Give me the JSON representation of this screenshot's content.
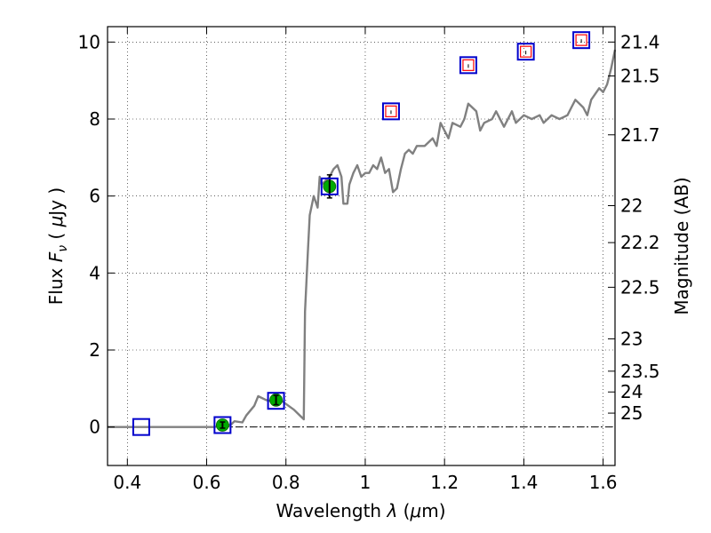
{
  "chart_data": {
    "type": "scatter",
    "xlabel": "Wavelength  λ (μm)",
    "ylabel": "Flux  Fν  ( μJy )",
    "ylabel_right": "Magnitude (AB)",
    "xlim": [
      0.35,
      1.63
    ],
    "ylim": [
      -1,
      10.4
    ],
    "x_ticks": [
      0.4,
      0.6,
      0.8,
      1.0,
      1.2,
      1.4,
      1.6
    ],
    "x_tick_labels": [
      "0.4",
      "0.6",
      "0.8",
      "1",
      "1.2",
      "1.4",
      "1.6"
    ],
    "y_ticks": [
      0,
      2,
      4,
      6,
      8,
      10
    ],
    "y_tick_labels": [
      "0",
      "2",
      "4",
      "6",
      "8",
      "10"
    ],
    "right_ticks": [
      {
        "label": "21.4",
        "flux": 10.0
      },
      {
        "label": "21.5",
        "flux": 9.12
      },
      {
        "label": "21.7",
        "flux": 7.59
      },
      {
        "label": "22",
        "flux": 5.75
      },
      {
        "label": "22.2",
        "flux": 4.79
      },
      {
        "label": "22.5",
        "flux": 3.63
      },
      {
        "label": "23",
        "flux": 2.29
      },
      {
        "label": "23.5",
        "flux": 1.45
      },
      {
        "label": "24",
        "flux": 0.91
      },
      {
        "label": "25",
        "flux": 0.36
      }
    ],
    "grid": true,
    "series": [
      {
        "kind": "model_sed_line",
        "color": "#808080",
        "points": [
          [
            0.35,
            0.0
          ],
          [
            0.55,
            0.0
          ],
          [
            0.62,
            0.0
          ],
          [
            0.64,
            0.05
          ],
          [
            0.66,
            0.05
          ],
          [
            0.67,
            0.15
          ],
          [
            0.69,
            0.12
          ],
          [
            0.7,
            0.3
          ],
          [
            0.72,
            0.55
          ],
          [
            0.73,
            0.8
          ],
          [
            0.75,
            0.7
          ],
          [
            0.77,
            0.65
          ],
          [
            0.78,
            0.75
          ],
          [
            0.8,
            0.6
          ],
          [
            0.82,
            0.45
          ],
          [
            0.83,
            0.35
          ],
          [
            0.845,
            0.2
          ],
          [
            0.848,
            3.0
          ],
          [
            0.855,
            4.5
          ],
          [
            0.86,
            5.5
          ],
          [
            0.87,
            6.0
          ],
          [
            0.88,
            5.7
          ],
          [
            0.885,
            6.5
          ],
          [
            0.89,
            6.3
          ],
          [
            0.9,
            6.4
          ],
          [
            0.91,
            6.5
          ],
          [
            0.92,
            6.7
          ],
          [
            0.93,
            6.8
          ],
          [
            0.94,
            6.5
          ],
          [
            0.945,
            5.8
          ],
          [
            0.955,
            5.8
          ],
          [
            0.96,
            6.3
          ],
          [
            0.97,
            6.6
          ],
          [
            0.98,
            6.8
          ],
          [
            0.99,
            6.5
          ],
          [
            1.0,
            6.6
          ],
          [
            1.01,
            6.6
          ],
          [
            1.02,
            6.8
          ],
          [
            1.03,
            6.7
          ],
          [
            1.04,
            7.0
          ],
          [
            1.05,
            6.6
          ],
          [
            1.06,
            6.7
          ],
          [
            1.07,
            6.1
          ],
          [
            1.08,
            6.2
          ],
          [
            1.09,
            6.7
          ],
          [
            1.1,
            7.1
          ],
          [
            1.11,
            7.2
          ],
          [
            1.12,
            7.1
          ],
          [
            1.13,
            7.3
          ],
          [
            1.15,
            7.3
          ],
          [
            1.17,
            7.5
          ],
          [
            1.18,
            7.3
          ],
          [
            1.19,
            7.9
          ],
          [
            1.21,
            7.5
          ],
          [
            1.22,
            7.9
          ],
          [
            1.24,
            7.8
          ],
          [
            1.25,
            8.0
          ],
          [
            1.26,
            8.4
          ],
          [
            1.28,
            8.2
          ],
          [
            1.29,
            7.7
          ],
          [
            1.3,
            7.9
          ],
          [
            1.32,
            8.0
          ],
          [
            1.33,
            8.2
          ],
          [
            1.35,
            7.8
          ],
          [
            1.37,
            8.2
          ],
          [
            1.38,
            7.9
          ],
          [
            1.4,
            8.1
          ],
          [
            1.42,
            8.0
          ],
          [
            1.44,
            8.1
          ],
          [
            1.45,
            7.9
          ],
          [
            1.47,
            8.1
          ],
          [
            1.49,
            8.0
          ],
          [
            1.51,
            8.1
          ],
          [
            1.52,
            8.3
          ],
          [
            1.53,
            8.5
          ],
          [
            1.55,
            8.3
          ],
          [
            1.56,
            8.1
          ],
          [
            1.57,
            8.5
          ],
          [
            1.59,
            8.8
          ],
          [
            1.6,
            8.7
          ],
          [
            1.61,
            8.9
          ],
          [
            1.62,
            9.3
          ],
          [
            1.63,
            9.8
          ]
        ]
      },
      {
        "kind": "observed",
        "color": "#00aa00",
        "points": [
          [
            0.64,
            0.05,
            0.08
          ],
          [
            0.775,
            0.7,
            0.12
          ],
          [
            0.91,
            6.25,
            0.3
          ]
        ]
      },
      {
        "kind": "model_photometry",
        "color": "#0000cc",
        "x": [
          0.435,
          0.64,
          0.775,
          0.91,
          1.065,
          1.26,
          1.405,
          1.545
        ],
        "y": [
          0.0,
          0.05,
          0.68,
          6.25,
          8.2,
          9.4,
          9.75,
          10.05
        ]
      },
      {
        "kind": "upper_limits",
        "color": "#ff0000",
        "x": [
          1.065,
          1.26,
          1.405,
          1.545
        ],
        "y": [
          8.2,
          9.4,
          9.75,
          10.05
        ]
      }
    ]
  }
}
